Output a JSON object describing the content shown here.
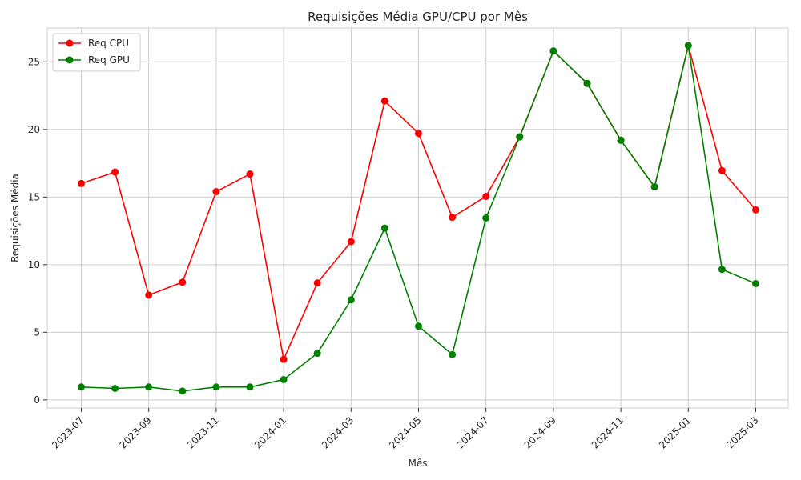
{
  "chart_data": {
    "type": "line",
    "title": "Requisições Média GPU/CPU por Mês",
    "xlabel": "Mês",
    "ylabel": "Requisições Média",
    "x": [
      "2023-07",
      "2023-08",
      "2023-09",
      "2023-10",
      "2023-11",
      "2023-12",
      "2024-01",
      "2024-02",
      "2024-03",
      "2024-04",
      "2024-05",
      "2024-06",
      "2024-07",
      "2024-08",
      "2024-09",
      "2024-10",
      "2024-11",
      "2024-12",
      "2025-01",
      "2025-02",
      "2025-03"
    ],
    "x_ticks": [
      "2023-07",
      "2023-09",
      "2023-11",
      "2024-01",
      "2024-03",
      "2024-05",
      "2024-07",
      "2024-09",
      "2024-11",
      "2025-01",
      "2025-03"
    ],
    "y_ticks": [
      0,
      5,
      10,
      15,
      20,
      25
    ],
    "ylim": [
      -0.6,
      27.5
    ],
    "grid": true,
    "legend_position": "top-left",
    "series": [
      {
        "name": "Req CPU",
        "color": "#ff0000",
        "values": [
          16.0,
          16.85,
          7.75,
          8.7,
          15.4,
          16.7,
          3.0,
          8.65,
          11.7,
          22.1,
          19.7,
          13.5,
          15.05,
          19.45,
          25.8,
          23.4,
          19.2,
          15.75,
          26.2,
          16.95,
          14.05
        ]
      },
      {
        "name": "Req GPU",
        "color": "#008000",
        "values": [
          0.95,
          0.85,
          0.95,
          0.65,
          0.95,
          0.95,
          1.5,
          3.45,
          7.4,
          12.7,
          5.45,
          3.35,
          13.45,
          19.45,
          25.8,
          23.4,
          19.2,
          15.75,
          26.2,
          9.65,
          8.6
        ]
      }
    ]
  }
}
